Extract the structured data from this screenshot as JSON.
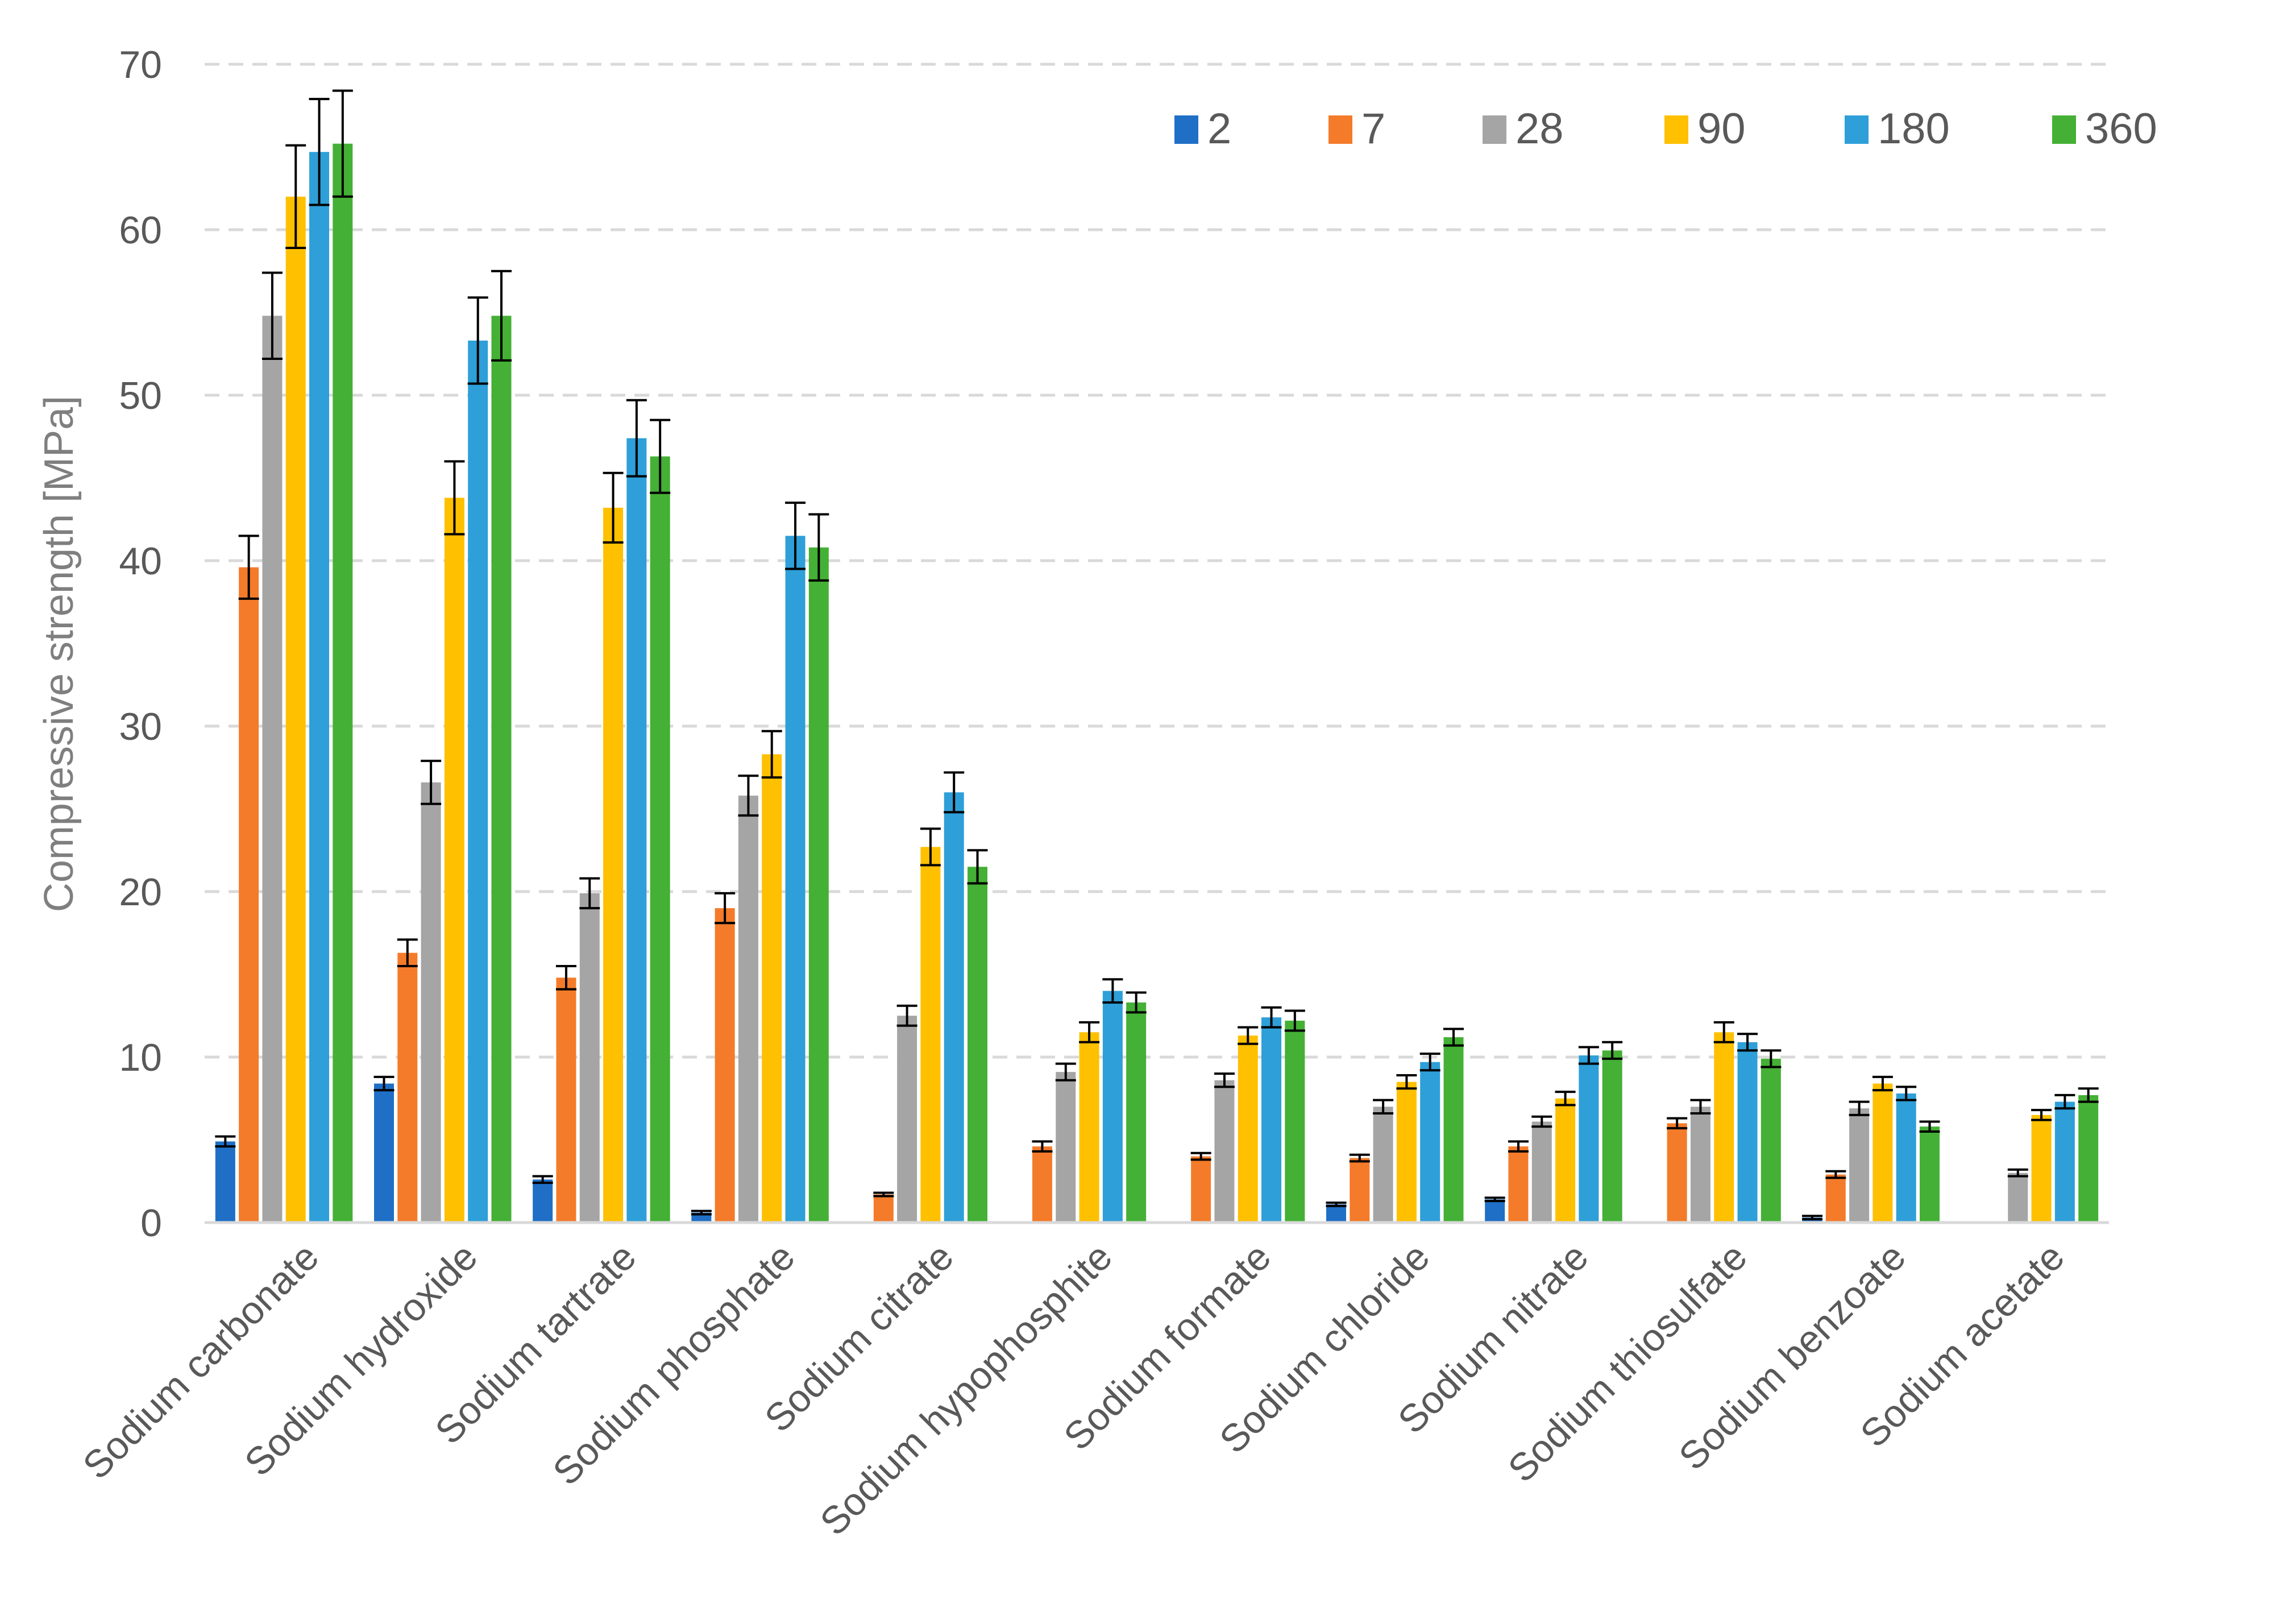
{
  "chart_data": {
    "type": "bar",
    "title": "",
    "xlabel": "",
    "ylabel": "Compressive strength [MPa]",
    "ylim": [
      0,
      70
    ],
    "yticks": [
      "0",
      "10",
      "20",
      "30",
      "40",
      "50",
      "60",
      "70"
    ],
    "grid": true,
    "legend_position": "top-right",
    "categories": [
      "Sodium carbonate",
      "Sodium hydroxide",
      "Sodium tartrate",
      "Sodium phosphate",
      "Sodium citrate",
      "Sodium hypophosphite",
      "Sodium formate",
      "Sodium chloride",
      "Sodium nitrate",
      "Sodium thiosulfate",
      "Sodium benzoate",
      "Sodium acetate"
    ],
    "series": [
      {
        "name": "2",
        "color": "#1f6fc6",
        "values": [
          4.9,
          8.4,
          2.6,
          0.6,
          0,
          0,
          0,
          1.1,
          1.4,
          0,
          0.3,
          0
        ],
        "errors": [
          0.3,
          0.4,
          0.2,
          0.1,
          0,
          0,
          0,
          0.1,
          0.1,
          0,
          0.1,
          0
        ]
      },
      {
        "name": "7",
        "color": "#f47b2a",
        "values": [
          39.6,
          16.3,
          14.8,
          19.0,
          1.7,
          4.6,
          4.0,
          3.9,
          4.6,
          6.0,
          2.9,
          0
        ],
        "errors": [
          1.9,
          0.8,
          0.7,
          0.9,
          0.1,
          0.3,
          0.2,
          0.2,
          0.3,
          0.3,
          0.2,
          0
        ]
      },
      {
        "name": "28",
        "color": "#a5a5a5",
        "values": [
          54.8,
          26.6,
          19.9,
          25.8,
          12.5,
          9.1,
          8.6,
          7.0,
          6.1,
          7.0,
          6.9,
          3.0
        ],
        "errors": [
          2.6,
          1.3,
          0.9,
          1.2,
          0.6,
          0.5,
          0.4,
          0.4,
          0.3,
          0.4,
          0.4,
          0.2
        ]
      },
      {
        "name": "90",
        "color": "#ffc000",
        "values": [
          62.0,
          43.8,
          43.2,
          28.3,
          22.7,
          11.5,
          11.3,
          8.5,
          7.5,
          11.5,
          8.4,
          6.5
        ],
        "errors": [
          3.1,
          2.2,
          2.1,
          1.4,
          1.1,
          0.6,
          0.5,
          0.4,
          0.4,
          0.6,
          0.4,
          0.3
        ]
      },
      {
        "name": "180",
        "color": "#2e9fd8",
        "values": [
          64.7,
          53.3,
          47.4,
          41.5,
          26.0,
          14.0,
          12.4,
          9.7,
          10.1,
          10.9,
          7.8,
          7.3
        ],
        "errors": [
          3.2,
          2.6,
          2.3,
          2.0,
          1.2,
          0.7,
          0.6,
          0.5,
          0.5,
          0.5,
          0.4,
          0.4
        ]
      },
      {
        "name": "360",
        "color": "#44b035",
        "values": [
          65.2,
          54.8,
          46.3,
          40.8,
          21.5,
          13.3,
          12.2,
          11.2,
          10.4,
          9.9,
          5.8,
          7.7
        ],
        "errors": [
          3.2,
          2.7,
          2.2,
          2.0,
          1.0,
          0.6,
          0.6,
          0.5,
          0.5,
          0.5,
          0.3,
          0.4
        ]
      }
    ]
  }
}
